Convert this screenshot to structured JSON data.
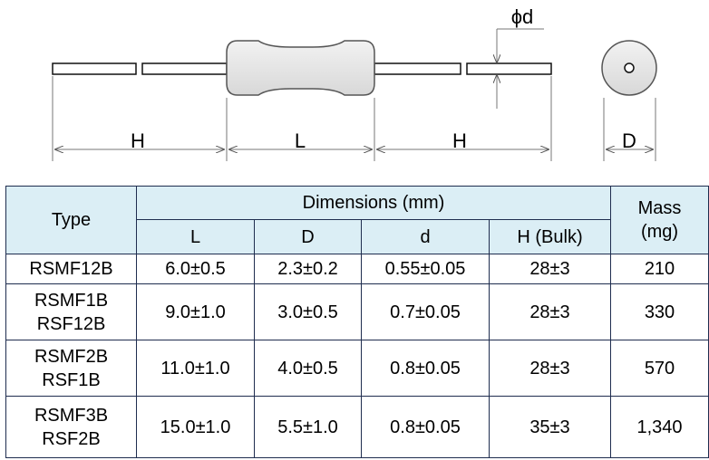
{
  "diagram": {
    "labels": {
      "lead_left": "H",
      "body": "L",
      "lead_right": "H",
      "diameter": "D",
      "wire": "ϕd"
    }
  },
  "table": {
    "headers": {
      "type": "Type",
      "dimensions": "Dimensions (mm)",
      "columns": [
        "L",
        "D",
        "d",
        "H (Bulk)"
      ],
      "mass": [
        "Mass",
        "(mg)"
      ]
    },
    "rows": [
      {
        "type": [
          "RSMF12B"
        ],
        "cells": [
          "6.0±0.5",
          "2.3±0.2",
          "0.55±0.05",
          "28±3",
          "210"
        ]
      },
      {
        "type": [
          "RSMF1B",
          "RSF12B"
        ],
        "cells": [
          "9.0±1.0",
          "3.0±0.5",
          "0.7±0.05",
          "28±3",
          "330"
        ]
      },
      {
        "type": [
          "RSMF2B",
          "RSF1B"
        ],
        "cells": [
          "11.0±1.0",
          "4.0±0.5",
          "0.8±0.05",
          "28±3",
          "570"
        ]
      },
      {
        "type": [
          "RSMF3B",
          "RSF2B"
        ],
        "cells": [
          "15.0±1.0",
          "5.5±1.0",
          "0.8±0.05",
          "35±3",
          "1,340"
        ]
      }
    ]
  }
}
